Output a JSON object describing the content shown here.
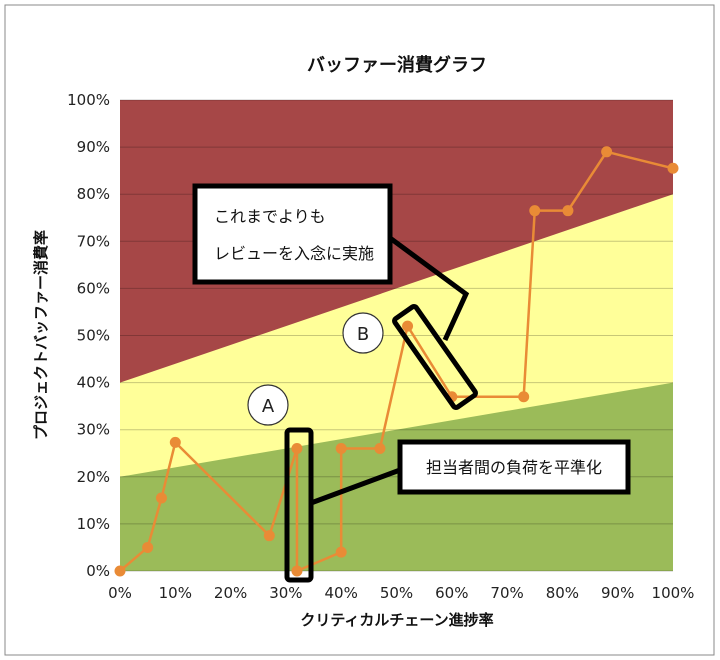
{
  "chart_data": {
    "type": "line",
    "title": "バッファー消費グラフ",
    "xlabel": "クリティカルチェーン進捗率",
    "ylabel": "プロジェクトバッファー消費率",
    "xlim": [
      0,
      100
    ],
    "ylim": [
      0,
      100
    ],
    "x_ticks": [
      "0%",
      "10%",
      "20%",
      "30%",
      "40%",
      "50%",
      "60%",
      "70%",
      "80%",
      "90%",
      "100%"
    ],
    "y_ticks": [
      "0%",
      "10%",
      "20%",
      "30%",
      "40%",
      "50%",
      "60%",
      "70%",
      "80%",
      "90%",
      "100%"
    ],
    "grid": true,
    "zones": [
      {
        "color": "#9bbb59",
        "y_at_x0": 20,
        "y_at_x100": 40
      },
      {
        "color": "#ffff99",
        "y_at_x0": 40,
        "y_at_x100": 80
      },
      {
        "color": "#a64747"
      }
    ],
    "series": [
      {
        "color": "#e98b36",
        "points": [
          [
            0,
            0
          ],
          [
            5,
            5
          ],
          [
            7.5,
            15.5
          ],
          [
            10,
            27.3
          ],
          [
            27,
            7.5
          ],
          [
            32,
            26
          ],
          [
            32,
            0
          ],
          [
            40,
            4
          ],
          [
            40,
            26
          ],
          [
            47,
            26
          ],
          [
            52,
            52
          ],
          [
            60,
            37
          ],
          [
            73,
            37
          ],
          [
            75,
            76.5
          ],
          [
            81,
            76.5
          ],
          [
            88,
            89
          ],
          [
            100,
            85.5
          ]
        ]
      }
    ],
    "annotations": {
      "callout_b": {
        "lines": [
          "これまでよりも",
          "レビューを入念に実施"
        ]
      },
      "callout_a": {
        "text": "担当者間の負荷を平準化"
      },
      "marker_a": "A",
      "marker_b": "B"
    }
  }
}
